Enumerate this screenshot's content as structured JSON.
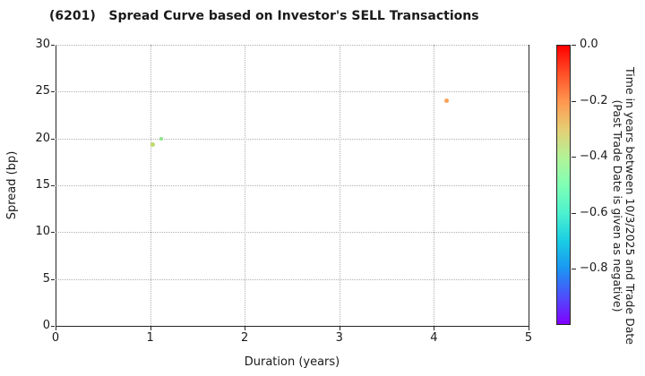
{
  "title": "(6201)   Spread Curve based on Investor's SELL Transactions",
  "chart_data": {
    "type": "scatter",
    "title": "(6201)   Spread Curve based on Investor's SELL Transactions",
    "xlabel": "Duration (years)",
    "ylabel": "Spread (bp)",
    "xlim": [
      0,
      5
    ],
    "ylim": [
      0,
      30
    ],
    "xticks": [
      0,
      1,
      2,
      3,
      4,
      5
    ],
    "yticks": [
      0,
      5,
      10,
      15,
      20,
      25,
      30
    ],
    "grid": "dotted",
    "grid_color": "#b0b0b0",
    "points": [
      {
        "x": 1.03,
        "y": 19.3,
        "time_years": -0.37,
        "color": "#bdd96b",
        "size": 5
      },
      {
        "x": 1.12,
        "y": 20.0,
        "time_years": -0.46,
        "color": "#8ce487",
        "size": 4
      },
      {
        "x": 4.13,
        "y": 24.0,
        "time_years": -0.22,
        "color": "#fba25b",
        "size": 5
      }
    ],
    "colorbar": {
      "label_line1": "Time in years between 10/3/2025 and Trade Date",
      "label_line2": "(Past Trade Date is given as negative)",
      "ticks": [
        "0.0",
        "−0.2",
        "−0.4",
        "−0.6",
        "−0.8"
      ],
      "tick_values": [
        0,
        -0.2,
        -0.4,
        -0.6,
        -0.8
      ],
      "range": [
        -1.0,
        0.0
      ],
      "colormap": "rainbow",
      "gradient_top_to_bottom": [
        "#ff0000",
        "#ff4f28",
        "#ff964f",
        "#e6ce74",
        "#b3f296",
        "#80ffb4",
        "#4df2ce",
        "#1acee3",
        "#1a96f2",
        "#4d4ffc",
        "#8000ff"
      ]
    }
  }
}
